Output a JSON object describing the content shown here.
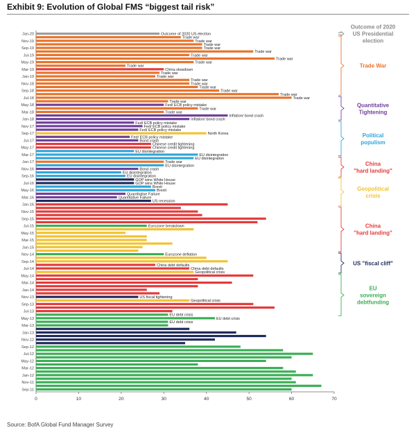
{
  "title": "Exhibit 9: Evolution of Global FMS “biggest tail risk”",
  "source": "Source: BofA Global Fund Manager Survey",
  "chart_data": {
    "type": "bar",
    "orientation": "horizontal",
    "xlim": [
      0,
      70
    ],
    "xticks": [
      0,
      10,
      20,
      30,
      40,
      50,
      60,
      70
    ],
    "colors": {
      "election": "#9e9e9e",
      "trade": "#e8732a",
      "qt": "#6f3f9a",
      "populism": "#2ea6d9",
      "china": "#e33a3a",
      "geo": "#f2c232",
      "fiscal": "#1f2a5c",
      "eu": "#3aae55"
    },
    "groups": [
      {
        "name": "Outcome of 2020 US Presidential election",
        "lines": [
          "Outcome of 2020",
          "US Presidential",
          "election"
        ],
        "color": "#8a8a8a",
        "start": 0,
        "end": 0
      },
      {
        "name": "Trade War",
        "lines": [
          "Trade War"
        ],
        "color": "#e8732a",
        "start": 1,
        "end": 17
      },
      {
        "name": "Quantitative Tightening",
        "lines": [
          "Quantitative",
          "Tightening"
        ],
        "color": "#6f3f9a",
        "start": 18,
        "end": 24
      },
      {
        "name": "Political populism",
        "lines": [
          "Political",
          "populism"
        ],
        "color": "#2ea6d9",
        "start": 25,
        "end": 34
      },
      {
        "name": "China \"hard landing\"",
        "lines": [
          "China",
          "\"hard landing\""
        ],
        "color": "#e33a3a",
        "start": 35,
        "end": 40
      },
      {
        "name": "Geopolitical crisis",
        "lines": [
          "Geopolitical",
          "crisis"
        ],
        "color": "#f2c232",
        "start": 41,
        "end": 48
      },
      {
        "name": "China \"hard landing\"",
        "lines": [
          "China",
          "\"hard landing\""
        ],
        "color": "#e33a3a",
        "start": 49,
        "end": 61
      },
      {
        "name": "US \"fiscal cliff\"",
        "lines": [
          "US \"fiscal cliff\""
        ],
        "color": "#1f2a5c",
        "start": 62,
        "end": 67
      },
      {
        "name": "EU sovereign debtfunding",
        "lines": [
          "EU",
          "sovereign",
          "debtfunding"
        ],
        "color": "#3aae55",
        "start": 68,
        "end": 79
      }
    ],
    "bars": [
      {
        "date": "Jan-20",
        "value": 29,
        "label": "Outcome of 2020 US election",
        "cat": "election",
        "tick": true
      },
      {
        "date": "Dec-19",
        "value": 34,
        "label": "Trade war",
        "cat": "trade",
        "tick": false
      },
      {
        "date": "Nov-19",
        "value": 37,
        "label": "Trade war",
        "cat": "trade",
        "tick": true
      },
      {
        "date": "Oct-19",
        "value": 39,
        "label": "Trade war",
        "cat": "trade",
        "tick": false
      },
      {
        "date": "Sep-19",
        "value": 39,
        "label": "Trade war",
        "cat": "trade",
        "tick": true
      },
      {
        "date": "Aug-19",
        "value": 51,
        "label": "Trade war",
        "cat": "trade",
        "tick": false
      },
      {
        "date": "Jul-19",
        "value": 36,
        "label": "Trade war",
        "cat": "trade",
        "tick": true
      },
      {
        "date": "Jun-19",
        "value": 56,
        "label": "Trade war",
        "cat": "trade",
        "tick": false
      },
      {
        "date": "May-19",
        "value": 37,
        "label": "Trade war",
        "cat": "trade",
        "tick": true
      },
      {
        "date": "Apr-19",
        "value": 21,
        "label": "Trade war",
        "cat": "trade",
        "tick": false
      },
      {
        "date": "Mar-19",
        "value": 30,
        "label": "China slowdown",
        "cat": "china",
        "tick": true
      },
      {
        "date": "Feb-19",
        "value": 29,
        "label": "Trade war",
        "cat": "trade",
        "tick": false
      },
      {
        "date": "Jan-19",
        "value": 28,
        "label": "Trade war",
        "cat": "trade",
        "tick": true
      },
      {
        "date": "Dec-18",
        "value": 36,
        "label": "Trade war",
        "cat": "trade",
        "tick": false
      },
      {
        "date": "Nov-18",
        "value": 36,
        "label": "Trade war",
        "cat": "trade",
        "tick": true
      },
      {
        "date": "Oct-18",
        "value": 38,
        "label": "Trade war",
        "cat": "trade",
        "tick": false
      },
      {
        "date": "Sep-18",
        "value": 43,
        "label": "Trade war",
        "cat": "trade",
        "tick": true
      },
      {
        "date": "Aug-18",
        "value": 57,
        "label": "Trade war",
        "cat": "trade",
        "tick": false
      },
      {
        "date": "Jul-18",
        "value": 60,
        "label": "Trade war",
        "cat": "trade",
        "tick": true
      },
      {
        "date": "Jun-18",
        "value": 31,
        "label": "Trade war",
        "cat": "trade",
        "tick": false
      },
      {
        "date": "May-18",
        "value": 30,
        "label": "Fed/ ECB policy mistake",
        "cat": "qt",
        "tick": true
      },
      {
        "date": "Apr-18",
        "value": 38,
        "label": "Trade war",
        "cat": "trade",
        "tick": false
      },
      {
        "date": "Mar-18",
        "value": 30,
        "label": "Trade war",
        "cat": "trade",
        "tick": true
      },
      {
        "date": "Feb-18",
        "value": 45,
        "label": "Inflation/ bond crash",
        "cat": "qt",
        "tick": false
      },
      {
        "date": "Jan-18",
        "value": 36,
        "label": "Inflation/ bond crash",
        "cat": "qt",
        "tick": true
      },
      {
        "date": "Dec-17",
        "value": 23,
        "label": "Fed/ ECB policy mistake",
        "cat": "qt",
        "tick": false
      },
      {
        "date": "Nov-17",
        "value": 25,
        "label": "Fed/ ECB policy mistake",
        "cat": "qt",
        "tick": true
      },
      {
        "date": "Oct-17",
        "value": 24,
        "label": "Fed/ ECB policy mistake",
        "cat": "qt",
        "tick": false
      },
      {
        "date": "Sep-17",
        "value": 40,
        "label": "North Korea",
        "cat": "geo",
        "tick": true
      },
      {
        "date": "Aug-17",
        "value": 22,
        "label": "Fed/ ECB policy mistake",
        "cat": "qt",
        "tick": false
      },
      {
        "date": "Jul-17",
        "value": 24,
        "label": "Bond crash",
        "cat": "qt",
        "tick": true
      },
      {
        "date": "Jun-17",
        "value": 27,
        "label": "Chinese credit tightening",
        "cat": "china",
        "tick": false
      },
      {
        "date": "May-17",
        "value": 27,
        "label": "Chinese credit tightening",
        "cat": "china",
        "tick": true
      },
      {
        "date": "Apr-17",
        "value": 23,
        "label": "EU disintegration",
        "cat": "populism",
        "tick": false
      },
      {
        "date": "Mar-17",
        "value": 38,
        "label": "EU disintegration",
        "cat": "populism",
        "tick": true
      },
      {
        "date": "Feb-17",
        "value": 37,
        "label": "EU disintegration",
        "cat": "populism",
        "tick": false
      },
      {
        "date": "Jan-17",
        "value": 30,
        "label": "Trade war",
        "cat": "trade",
        "tick": true
      },
      {
        "date": "Dec-16",
        "value": 30,
        "label": "EU disintegration",
        "cat": "populism",
        "tick": false
      },
      {
        "date": "Nov-16",
        "value": 24,
        "label": "Bond crash",
        "cat": "qt",
        "tick": true
      },
      {
        "date": "Oct-16",
        "value": 20,
        "label": "EU disintegration",
        "cat": "populism",
        "tick": false
      },
      {
        "date": "Sep-16",
        "value": 21,
        "label": "EU disintegration",
        "cat": "populism",
        "tick": true
      },
      {
        "date": "Aug-16",
        "value": 23,
        "label": "GOP wins White House",
        "cat": "fiscal",
        "tick": false
      },
      {
        "date": "Jul-16",
        "value": 23,
        "label": "GOP wins White House",
        "cat": "fiscal",
        "tick": true
      },
      {
        "date": "Jun-16",
        "value": 27,
        "label": "Brexit",
        "cat": "populism",
        "tick": false
      },
      {
        "date": "May-16",
        "value": 28,
        "label": "Brexit",
        "cat": "populism",
        "tick": true
      },
      {
        "date": "Apr-16",
        "value": 21,
        "label": "Quantitative Failure",
        "cat": "qt",
        "tick": false
      },
      {
        "date": "Mar-16",
        "value": 19,
        "label": "Quantitative Failure",
        "cat": "qt",
        "tick": true
      },
      {
        "date": "Feb-16",
        "value": 27,
        "label": "US recession",
        "cat": "fiscal",
        "tick": false
      },
      {
        "date": "Jan-16",
        "value": 45,
        "label": "",
        "cat": "china",
        "tick": true
      },
      {
        "date": "Dec-15",
        "value": 34,
        "label": "",
        "cat": "china",
        "tick": false
      },
      {
        "date": "Nov-15",
        "value": 38,
        "label": "",
        "cat": "china",
        "tick": true
      },
      {
        "date": "Oct-15",
        "value": 39,
        "label": "",
        "cat": "china",
        "tick": false
      },
      {
        "date": "Sep-15",
        "value": 54,
        "label": "",
        "cat": "china",
        "tick": true
      },
      {
        "date": "Aug-15",
        "value": 52,
        "label": "",
        "cat": "china",
        "tick": false
      },
      {
        "date": "Jul-15",
        "value": 26,
        "label": "Eurozone breakdown",
        "cat": "eu",
        "tick": true
      },
      {
        "date": "Jun-15",
        "value": 37,
        "label": "",
        "cat": "geo",
        "tick": false
      },
      {
        "date": "May-15",
        "value": 21,
        "label": "",
        "cat": "geo",
        "tick": true
      },
      {
        "date": "Apr-15",
        "value": 26,
        "label": "",
        "cat": "geo",
        "tick": false
      },
      {
        "date": "Mar-15",
        "value": 26,
        "label": "",
        "cat": "geo",
        "tick": true
      },
      {
        "date": "Feb-15",
        "value": 32,
        "label": "",
        "cat": "geo",
        "tick": false
      },
      {
        "date": "Jan-15",
        "value": 25,
        "label": "",
        "cat": "geo",
        "tick": true
      },
      {
        "date": "Dec-14",
        "value": 24,
        "label": "",
        "cat": "geo",
        "tick": false
      },
      {
        "date": "Nov-14",
        "value": 30,
        "label": "Eurozone deflation",
        "cat": "eu",
        "tick": true
      },
      {
        "date": "Oct-14",
        "value": 40,
        "label": "",
        "cat": "geo",
        "tick": false
      },
      {
        "date": "Sep-14",
        "value": 45,
        "label": "",
        "cat": "geo",
        "tick": true
      },
      {
        "date": "Aug-14",
        "value": 28,
        "label": "China debt defaults",
        "cat": "china",
        "tick": false
      },
      {
        "date": "Jul-14",
        "value": 36,
        "label": "China debt defaults",
        "cat": "china",
        "tick": true
      },
      {
        "date": "Jun-14",
        "value": 37,
        "label": "Geopolitical crisis",
        "cat": "geo",
        "tick": false
      },
      {
        "date": "May-14",
        "value": 51,
        "label": "",
        "cat": "china",
        "tick": true
      },
      {
        "date": "Apr-14",
        "value": 38,
        "label": "",
        "cat": "china",
        "tick": false
      },
      {
        "date": "Mar-14",
        "value": 46,
        "label": "",
        "cat": "china",
        "tick": true
      },
      {
        "date": "Feb-14",
        "value": 38,
        "label": "",
        "cat": "china",
        "tick": false
      },
      {
        "date": "Jan-14",
        "value": 26,
        "label": "",
        "cat": "china",
        "tick": true
      },
      {
        "date": "Dec-13",
        "value": 29,
        "label": "",
        "cat": "china",
        "tick": false
      },
      {
        "date": "Nov-13",
        "value": 24,
        "label": "US fiscal tightening",
        "cat": "fiscal",
        "tick": true
      },
      {
        "date": "Oct-13",
        "value": 36,
        "label": "Geopolitical crisis",
        "cat": "geo",
        "tick": false
      },
      {
        "date": "Sep-13",
        "value": 51,
        "label": "",
        "cat": "china",
        "tick": true
      },
      {
        "date": "Aug-13",
        "value": 56,
        "label": "",
        "cat": "china",
        "tick": false
      },
      {
        "date": "Jul-13",
        "value": 32,
        "label": "",
        "cat": "china",
        "tick": true
      },
      {
        "date": "Jun-13",
        "value": 31,
        "label": "EU debt crisis",
        "cat": "eu",
        "tick": false
      },
      {
        "date": "May-13",
        "value": 42,
        "label": "EU debt crisis",
        "cat": "eu",
        "tick": true
      },
      {
        "date": "Apr-13",
        "value": 31,
        "label": "EU debt crisis",
        "cat": "eu",
        "tick": false
      },
      {
        "date": "Mar-13",
        "value": 31,
        "label": "",
        "cat": "eu",
        "tick": true
      },
      {
        "date": "Feb-13",
        "value": 36,
        "label": "",
        "cat": "fiscal",
        "tick": false
      },
      {
        "date": "Jan-13",
        "value": 47,
        "label": "",
        "cat": "fiscal",
        "tick": true
      },
      {
        "date": "Dec-12",
        "value": 54,
        "label": "",
        "cat": "fiscal",
        "tick": false
      },
      {
        "date": "Nov-12",
        "value": 42,
        "label": "",
        "cat": "fiscal",
        "tick": true
      },
      {
        "date": "Oct-12",
        "value": 35,
        "label": "",
        "cat": "fiscal",
        "tick": false
      },
      {
        "date": "Sep-12",
        "value": 48,
        "label": "",
        "cat": "eu",
        "tick": true
      },
      {
        "date": "Aug-12",
        "value": 58,
        "label": "",
        "cat": "eu",
        "tick": false
      },
      {
        "date": "Jul-12",
        "value": 65,
        "label": "",
        "cat": "eu",
        "tick": true
      },
      {
        "date": "Jun-12",
        "value": 60,
        "label": "",
        "cat": "eu",
        "tick": false
      },
      {
        "date": "May-12",
        "value": 54,
        "label": "",
        "cat": "eu",
        "tick": true
      },
      {
        "date": "Apr-12",
        "value": 38,
        "label": "",
        "cat": "eu",
        "tick": false
      },
      {
        "date": "Mar-12",
        "value": 58,
        "label": "",
        "cat": "eu",
        "tick": true
      },
      {
        "date": "Feb-12",
        "value": 61,
        "label": "",
        "cat": "eu",
        "tick": false
      },
      {
        "date": "Jan-12",
        "value": 65,
        "label": "",
        "cat": "eu",
        "tick": true
      },
      {
        "date": "Dec-11",
        "value": 60,
        "label": "",
        "cat": "eu",
        "tick": false
      },
      {
        "date": "Nov-11",
        "value": 61,
        "label": "",
        "cat": "eu",
        "tick": true
      },
      {
        "date": "Oct-11",
        "value": 67,
        "label": "",
        "cat": "eu",
        "tick": false
      },
      {
        "date": "Sep-11",
        "value": 60,
        "label": "",
        "cat": "eu",
        "tick": true
      }
    ]
  }
}
